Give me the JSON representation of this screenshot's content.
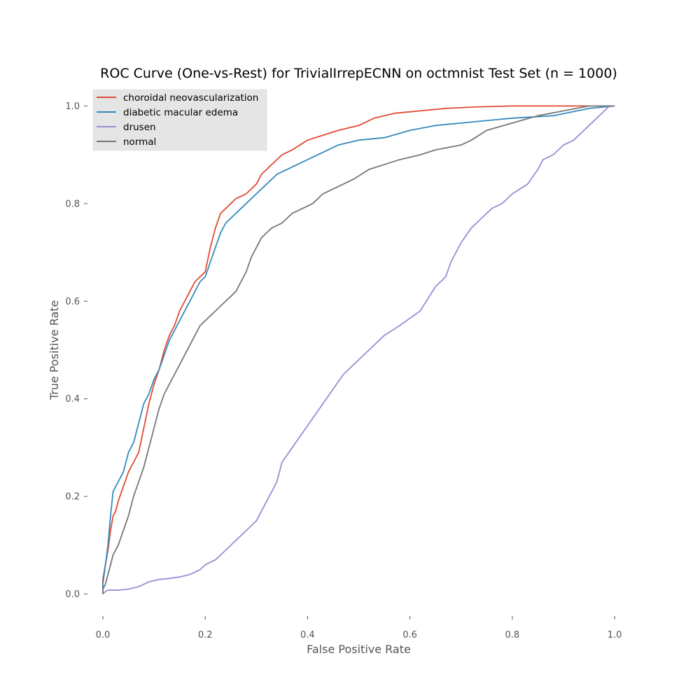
{
  "chart_data": {
    "type": "line",
    "title": "ROC Curve (One-vs-Rest) for TrivialIrrepECNN on octmnist Test Set (n = 1000)",
    "xlabel": "False Positive Rate",
    "ylabel": "True Positive Rate",
    "xlim": [
      -0.03,
      1.03
    ],
    "ylim": [
      -0.045,
      1.045
    ],
    "xticks": [
      0.0,
      0.2,
      0.4,
      0.6,
      0.8,
      1.0
    ],
    "yticks": [
      0.0,
      0.2,
      0.4,
      0.6,
      0.8,
      1.0
    ],
    "xtick_labels": [
      "0.0",
      "0.2",
      "0.4",
      "0.6",
      "0.8",
      "1.0"
    ],
    "ytick_labels": [
      "0.0",
      "0.2",
      "0.4",
      "0.6",
      "0.8",
      "1.0"
    ],
    "grid": false,
    "legend_position": "top-left",
    "series": [
      {
        "name": "choroidal neovascularization",
        "color": "#E24A33",
        "x": [
          0.0,
          0.0,
          0.005,
          0.01,
          0.015,
          0.02,
          0.025,
          0.03,
          0.04,
          0.05,
          0.06,
          0.07,
          0.08,
          0.09,
          0.1,
          0.11,
          0.12,
          0.13,
          0.14,
          0.15,
          0.16,
          0.17,
          0.18,
          0.19,
          0.2,
          0.21,
          0.22,
          0.23,
          0.24,
          0.25,
          0.26,
          0.28,
          0.3,
          0.31,
          0.32,
          0.33,
          0.35,
          0.37,
          0.4,
          0.43,
          0.46,
          0.5,
          0.53,
          0.57,
          0.62,
          0.67,
          0.73,
          0.8,
          0.86,
          0.91,
          1.0
        ],
        "y": [
          0.0,
          0.03,
          0.06,
          0.09,
          0.13,
          0.16,
          0.17,
          0.19,
          0.22,
          0.25,
          0.27,
          0.29,
          0.34,
          0.39,
          0.43,
          0.46,
          0.5,
          0.53,
          0.55,
          0.58,
          0.6,
          0.62,
          0.64,
          0.65,
          0.66,
          0.71,
          0.75,
          0.78,
          0.79,
          0.8,
          0.81,
          0.82,
          0.84,
          0.86,
          0.87,
          0.88,
          0.9,
          0.91,
          0.93,
          0.94,
          0.95,
          0.96,
          0.975,
          0.985,
          0.99,
          0.995,
          0.998,
          1.0,
          1.0,
          1.0,
          1.0
        ]
      },
      {
        "name": "diabetic macular edema",
        "color": "#348ABD",
        "x": [
          0.0,
          0.0,
          0.005,
          0.01,
          0.015,
          0.02,
          0.03,
          0.04,
          0.05,
          0.06,
          0.07,
          0.08,
          0.09,
          0.1,
          0.11,
          0.12,
          0.13,
          0.14,
          0.15,
          0.16,
          0.17,
          0.18,
          0.19,
          0.2,
          0.21,
          0.22,
          0.23,
          0.24,
          0.25,
          0.26,
          0.27,
          0.28,
          0.3,
          0.32,
          0.34,
          0.36,
          0.38,
          0.4,
          0.42,
          0.44,
          0.46,
          0.5,
          0.55,
          0.6,
          0.65,
          0.7,
          0.75,
          0.8,
          0.88,
          0.95,
          1.0
        ],
        "y": [
          0.0,
          0.02,
          0.06,
          0.1,
          0.16,
          0.21,
          0.23,
          0.25,
          0.29,
          0.31,
          0.35,
          0.39,
          0.41,
          0.44,
          0.46,
          0.49,
          0.52,
          0.54,
          0.56,
          0.58,
          0.6,
          0.62,
          0.64,
          0.65,
          0.68,
          0.71,
          0.74,
          0.76,
          0.77,
          0.78,
          0.79,
          0.8,
          0.82,
          0.84,
          0.86,
          0.87,
          0.88,
          0.89,
          0.9,
          0.91,
          0.92,
          0.93,
          0.935,
          0.95,
          0.96,
          0.965,
          0.97,
          0.975,
          0.98,
          0.995,
          1.0
        ]
      },
      {
        "name": "drusen",
        "color": "#988ED5",
        "x": [
          0.0,
          0.005,
          0.01,
          0.03,
          0.05,
          0.07,
          0.09,
          0.11,
          0.13,
          0.15,
          0.17,
          0.19,
          0.2,
          0.21,
          0.22,
          0.23,
          0.24,
          0.25,
          0.26,
          0.27,
          0.28,
          0.29,
          0.3,
          0.31,
          0.32,
          0.33,
          0.34,
          0.35,
          0.37,
          0.39,
          0.41,
          0.43,
          0.45,
          0.47,
          0.5,
          0.52,
          0.55,
          0.58,
          0.62,
          0.65,
          0.67,
          0.68,
          0.69,
          0.7,
          0.72,
          0.74,
          0.76,
          0.78,
          0.8,
          0.83,
          0.85,
          0.86,
          0.88,
          0.9,
          0.92,
          0.94,
          0.96,
          0.97,
          0.98,
          0.99,
          1.0
        ],
        "y": [
          0.0,
          0.005,
          0.008,
          0.008,
          0.01,
          0.015,
          0.025,
          0.03,
          0.032,
          0.035,
          0.04,
          0.05,
          0.06,
          0.065,
          0.07,
          0.08,
          0.09,
          0.1,
          0.11,
          0.12,
          0.13,
          0.14,
          0.15,
          0.17,
          0.19,
          0.21,
          0.23,
          0.27,
          0.3,
          0.33,
          0.36,
          0.39,
          0.42,
          0.45,
          0.48,
          0.5,
          0.53,
          0.55,
          0.58,
          0.63,
          0.65,
          0.68,
          0.7,
          0.72,
          0.75,
          0.77,
          0.79,
          0.8,
          0.82,
          0.84,
          0.87,
          0.89,
          0.9,
          0.92,
          0.93,
          0.95,
          0.97,
          0.98,
          0.99,
          1.0,
          1.0
        ]
      },
      {
        "name": "normal",
        "color": "#777777",
        "x": [
          0.0,
          0.0,
          0.005,
          0.01,
          0.015,
          0.02,
          0.03,
          0.04,
          0.05,
          0.06,
          0.07,
          0.08,
          0.09,
          0.1,
          0.11,
          0.12,
          0.13,
          0.14,
          0.15,
          0.16,
          0.17,
          0.18,
          0.19,
          0.2,
          0.21,
          0.22,
          0.23,
          0.24,
          0.25,
          0.26,
          0.27,
          0.28,
          0.29,
          0.3,
          0.31,
          0.32,
          0.33,
          0.35,
          0.37,
          0.39,
          0.41,
          0.43,
          0.45,
          0.47,
          0.49,
          0.52,
          0.55,
          0.58,
          0.62,
          0.65,
          0.7,
          0.72,
          0.75,
          0.8,
          0.85,
          0.9,
          0.95,
          1.0
        ],
        "y": [
          0.0,
          0.01,
          0.02,
          0.04,
          0.06,
          0.08,
          0.1,
          0.13,
          0.16,
          0.2,
          0.23,
          0.26,
          0.3,
          0.34,
          0.38,
          0.41,
          0.43,
          0.45,
          0.47,
          0.49,
          0.51,
          0.53,
          0.55,
          0.56,
          0.57,
          0.58,
          0.59,
          0.6,
          0.61,
          0.62,
          0.64,
          0.66,
          0.69,
          0.71,
          0.73,
          0.74,
          0.75,
          0.76,
          0.78,
          0.79,
          0.8,
          0.82,
          0.83,
          0.84,
          0.85,
          0.87,
          0.88,
          0.89,
          0.9,
          0.91,
          0.92,
          0.93,
          0.95,
          0.965,
          0.98,
          0.99,
          1.0,
          1.0
        ]
      }
    ]
  }
}
